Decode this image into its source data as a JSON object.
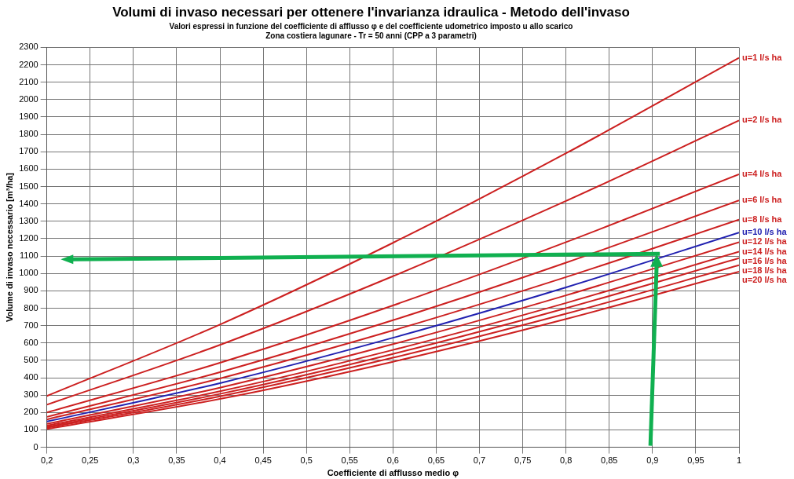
{
  "chart_data": {
    "type": "line",
    "title": "Volumi di invaso necessari per ottenere l'invarianza idraulica - Metodo dell'invaso",
    "subtitle": "Valori espressi in funzione del coefficiente di afflusso φ e del coefficiente udometrico imposto u allo scarico\nZona costiera lagunare - Tr = 50 anni (CPP a 3 parametri)",
    "xlabel": "Coefficiente di afflusso medio φ",
    "ylabel": "Volume di invaso necessario [m³/ha]",
    "x": [
      0.2,
      0.4,
      0.6,
      0.8,
      1
    ],
    "series": [
      {
        "name": "u=1 l/s ha",
        "color": "#cc2020",
        "values": [
          295,
          706,
          1176,
          1691,
          2240
        ]
      },
      {
        "name": "u=2 l/s ha",
        "color": "#cc2020",
        "values": [
          245,
          589,
          984,
          1417,
          1880
        ]
      },
      {
        "name": "u=4 l/s ha",
        "color": "#cc2020",
        "values": [
          200,
          486,
          816,
          1180,
          1570
        ]
      },
      {
        "name": "u=6 l/s ha",
        "color": "#cc2020",
        "values": [
          175,
          432,
          731,
          1062,
          1420
        ]
      },
      {
        "name": "u=8 l/s ha",
        "color": "#cc2020",
        "values": [
          160,
          396,
          672,
          979,
          1310
        ]
      },
      {
        "name": "u=10 l/s ha",
        "color": "#2020b0",
        "values": [
          148,
          369,
          630,
          920,
          1235
        ]
      },
      {
        "name": "u=12 l/s ha",
        "color": "#cc2020",
        "values": [
          135,
          343,
          593,
          874,
          1180
        ]
      },
      {
        "name": "u=14 l/s ha",
        "color": "#cc2020",
        "values": [
          125,
          322,
          560,
          830,
          1125
        ]
      },
      {
        "name": "u=16 l/s ha",
        "color": "#cc2020",
        "values": [
          118,
          307,
          537,
          800,
          1088
        ]
      },
      {
        "name": "u=18 l/s ha",
        "color": "#cc2020",
        "values": [
          112,
          293,
          515,
          768,
          1047
        ]
      },
      {
        "name": "u=20 l/s ha",
        "color": "#cc2020",
        "values": [
          105,
          278,
          492,
          738,
          1010
        ]
      }
    ],
    "xlim": [
      0.2,
      1
    ],
    "xticks": [
      {
        "value": 0.2,
        "label": "0,2"
      },
      {
        "value": 0.25,
        "label": "0,25"
      },
      {
        "value": 0.3,
        "label": "0,3"
      },
      {
        "value": 0.35,
        "label": "0,35"
      },
      {
        "value": 0.4,
        "label": "0,4"
      },
      {
        "value": 0.45,
        "label": "0,45"
      },
      {
        "value": 0.5,
        "label": "0,5"
      },
      {
        "value": 0.55,
        "label": "0,55"
      },
      {
        "value": 0.6,
        "label": "0,6"
      },
      {
        "value": 0.65,
        "label": "0,65"
      },
      {
        "value": 0.7,
        "label": "0,7"
      },
      {
        "value": 0.75,
        "label": "0,75"
      },
      {
        "value": 0.8,
        "label": "0,8"
      },
      {
        "value": 0.85,
        "label": "0,85"
      },
      {
        "value": 0.9,
        "label": "0,9"
      },
      {
        "value": 0.95,
        "label": "0,95"
      },
      1
    ],
    "ylim": [
      0,
      2300
    ],
    "yticks": [
      0,
      100,
      200,
      300,
      400,
      500,
      600,
      700,
      800,
      900,
      1000,
      1100,
      1200,
      1300,
      1400,
      1500,
      1600,
      1700,
      1800,
      1900,
      2000,
      2100,
      2200,
      2300
    ],
    "grid": true,
    "legend": false,
    "marker": "none",
    "line_style": "solid"
  }
}
